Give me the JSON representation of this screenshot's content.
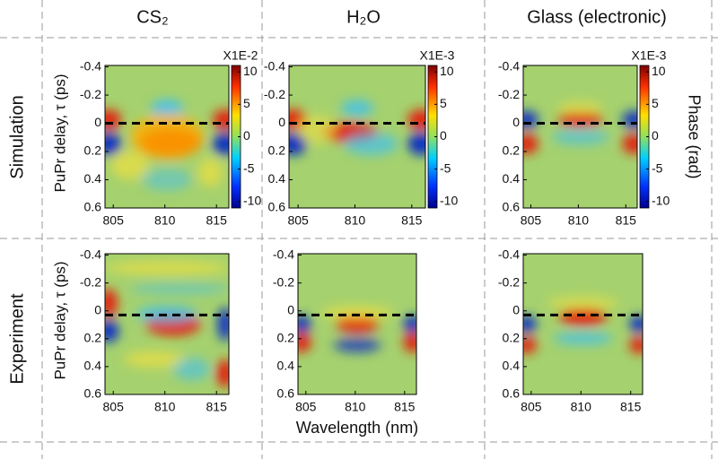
{
  "column_headers": [
    "CS₂",
    "H₂O",
    "Glass (electronic)"
  ],
  "row_labels": [
    "Simulation",
    "Experiment"
  ],
  "chart_data": [
    {
      "type": "heatmap",
      "ylabel": "PuPr delay, τ (ps)",
      "xlim": [
        804.2,
        816.2
      ],
      "xticks": [
        805,
        810,
        815
      ],
      "ylim": [
        -0.41,
        0.6
      ],
      "yticks": [
        -0.4,
        -0.2,
        0,
        0.2,
        0.4,
        0.6
      ],
      "hline": 0,
      "colorbar": {
        "title": "X1E-2",
        "lim": [
          -11,
          11
        ],
        "ticks": [
          10,
          5,
          0,
          -5,
          -10
        ]
      }
    },
    {
      "type": "heatmap",
      "xlim": [
        804.2,
        816.2
      ],
      "xticks": [
        805,
        810,
        815
      ],
      "ylim": [
        -0.41,
        0.6
      ],
      "yticks": [
        -0.4,
        -0.2,
        0,
        0.2,
        0.4,
        0.6
      ],
      "hline": 0,
      "colorbar": {
        "title": "X1E-3",
        "lim": [
          -11,
          11
        ],
        "ticks": [
          10,
          5,
          0,
          -5,
          -10
        ]
      }
    },
    {
      "type": "heatmap",
      "xlim": [
        804.2,
        816.2
      ],
      "xticks": [
        805,
        810,
        815
      ],
      "ylim": [
        -0.41,
        0.6
      ],
      "yticks": [
        -0.4,
        -0.2,
        0,
        0.2,
        0.4,
        0.6
      ],
      "hline": 0,
      "colorbar": {
        "title": "X1E-3",
        "label": "Phase (rad)",
        "lim": [
          -11,
          11
        ],
        "ticks": [
          10,
          5,
          0,
          -5,
          -10
        ]
      }
    },
    {
      "type": "heatmap",
      "ylabel": "PuPr delay, τ (ps)",
      "xlim": [
        804.2,
        816.2
      ],
      "xticks": [
        805,
        810,
        815
      ],
      "ylim": [
        -0.41,
        0.6
      ],
      "yticks": [
        -0.4,
        -0.2,
        0,
        0.2,
        0.4,
        0.6
      ],
      "hline": 0.03
    },
    {
      "type": "heatmap",
      "xlabel": "Wavelength (nm)",
      "xlim": [
        804.2,
        816.2
      ],
      "xticks": [
        805,
        810,
        815
      ],
      "ylim": [
        -0.41,
        0.6
      ],
      "yticks": [
        -0.4,
        -0.2,
        0,
        0.2,
        0.4,
        0.6
      ],
      "hline": 0.03
    },
    {
      "type": "heatmap",
      "xlim": [
        804.2,
        816.2
      ],
      "xticks": [
        805,
        810,
        815
      ],
      "ylim": [
        -0.41,
        0.6
      ],
      "yticks": [
        -0.4,
        -0.2,
        0,
        0.2,
        0.4,
        0.6
      ],
      "hline": 0.03
    }
  ]
}
